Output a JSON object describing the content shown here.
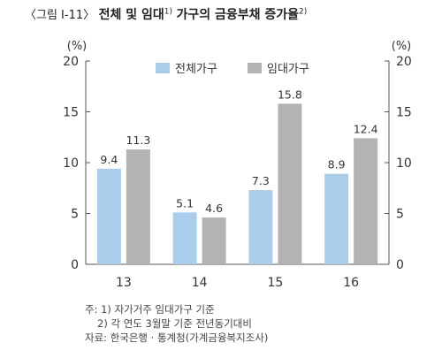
{
  "title": {
    "prefix": "〈그림 Ⅰ-11〉",
    "main": "전체 및 임대",
    "sup1": "1)",
    "main2": "가구의 금융부채 증가율",
    "sup2": "2)"
  },
  "chart_data": {
    "type": "bar",
    "categories": [
      "13",
      "14",
      "15",
      "16"
    ],
    "series": [
      {
        "name": "전체가구",
        "values": [
          9.4,
          5.1,
          7.3,
          8.9
        ],
        "labels": [
          "9.4",
          "5.1",
          "7.3",
          "8.9"
        ]
      },
      {
        "name": "임대가구",
        "values": [
          11.3,
          4.6,
          15.8,
          12.4
        ],
        "labels": [
          "11.3",
          "4.6",
          "15.8",
          "12.4"
        ]
      }
    ],
    "ylim": [
      0,
      20
    ],
    "yticks": [
      "0",
      "5",
      "10",
      "15",
      "20"
    ],
    "yunit_left": "(%)",
    "yunit_right": "(%)",
    "legend_position": "top-center",
    "grid": false,
    "colors": {
      "series0": "#a9cdea",
      "series1": "#b3b3b3"
    }
  },
  "notes": {
    "line1": "주: 1) 자가거주 임대가구 기준",
    "line2": "2) 각 연도 3월말 기준 전년동기대비",
    "line3": "자료: 한국은행 · 통계청(가계금융복지조사)"
  }
}
